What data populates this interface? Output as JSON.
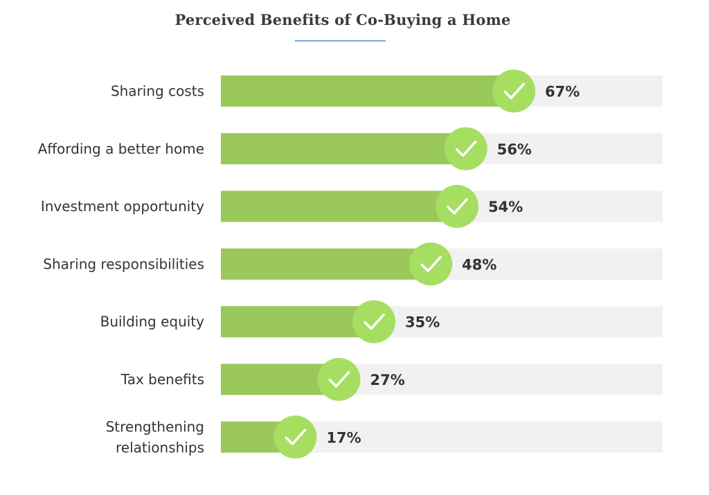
{
  "chart_data": {
    "type": "bar",
    "orientation": "horizontal",
    "title": "Perceived Benefits of Co-Buying a Home",
    "xlabel": "",
    "ylabel": "",
    "xlim": [
      0,
      100
    ],
    "grid": false,
    "legend": "none",
    "categories": [
      [
        "Sharing costs"
      ],
      [
        "Affording a better home"
      ],
      [
        "Investment opportunity"
      ],
      [
        "Sharing responsibilities"
      ],
      [
        "Building equity"
      ],
      [
        "Tax benefits"
      ],
      [
        "Strengthening",
        "relationships"
      ]
    ],
    "values": [
      67,
      56,
      54,
      48,
      35,
      27,
      17
    ],
    "value_labels": [
      "67%",
      "56%",
      "54%",
      "48%",
      "35%",
      "27%",
      "17%"
    ],
    "colors": {
      "bar_fill": "#9bc85a",
      "track": "#f1f1f1",
      "marker": "#a6de62",
      "check": "#ffffff",
      "title_underline": "#7da7e3"
    },
    "marker_icon": "checkmark-circle-icon"
  }
}
